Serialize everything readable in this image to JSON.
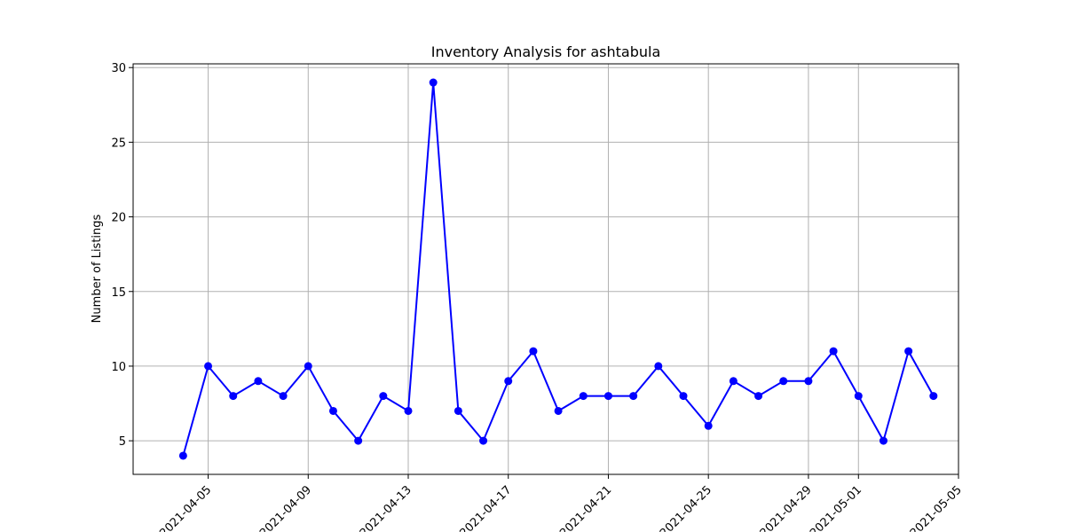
{
  "chart_data": {
    "type": "line",
    "title": "Inventory Analysis for ashtabula",
    "xlabel": "",
    "ylabel": "Number of Listings",
    "x": [
      "2021-04-04",
      "2021-04-05",
      "2021-04-06",
      "2021-04-07",
      "2021-04-08",
      "2021-04-09",
      "2021-04-10",
      "2021-04-11",
      "2021-04-12",
      "2021-04-13",
      "2021-04-14",
      "2021-04-15",
      "2021-04-16",
      "2021-04-17",
      "2021-04-18",
      "2021-04-19",
      "2021-04-20",
      "2021-04-21",
      "2021-04-22",
      "2021-04-23",
      "2021-04-24",
      "2021-04-25",
      "2021-04-26",
      "2021-04-27",
      "2021-04-28",
      "2021-04-29",
      "2021-04-30",
      "2021-05-01",
      "2021-05-02",
      "2021-05-03",
      "2021-05-04"
    ],
    "series": [
      {
        "values": [
          4,
          10,
          8,
          9,
          8,
          10,
          7,
          5,
          8,
          7,
          29,
          7,
          5,
          9,
          11,
          7,
          8,
          8,
          8,
          10,
          8,
          6,
          9,
          8,
          9,
          9,
          11,
          8,
          5,
          11,
          8
        ],
        "color": "#0000ff",
        "marker": "circle"
      }
    ],
    "xlim": [
      "2021-04-02",
      "2021-05-05"
    ],
    "ylim": [
      2.75,
      30.25
    ],
    "xticks": [
      "2021-04-05",
      "2021-04-09",
      "2021-04-13",
      "2021-04-17",
      "2021-04-21",
      "2021-04-25",
      "2021-04-29",
      "2021-05-01",
      "2021-05-05"
    ],
    "yticks": [
      5,
      10,
      15,
      20,
      25,
      30
    ],
    "grid": true
  }
}
